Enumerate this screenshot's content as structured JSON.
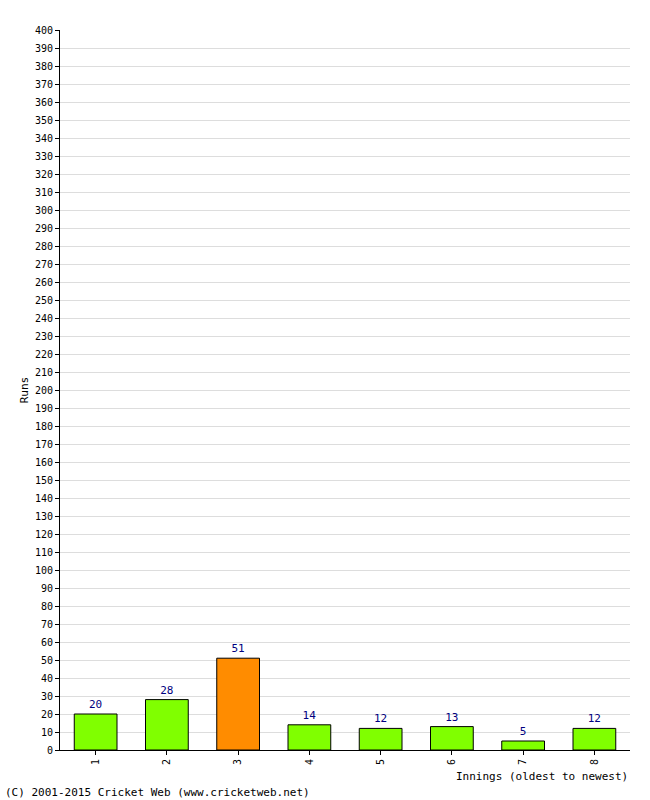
{
  "chart_data": {
    "type": "bar",
    "categories": [
      "1",
      "2",
      "3",
      "4",
      "5",
      "6",
      "7",
      "8"
    ],
    "values": [
      20,
      28,
      51,
      14,
      12,
      13,
      5,
      12
    ],
    "colors": [
      "#80ff00",
      "#80ff00",
      "#ff8c00",
      "#80ff00",
      "#80ff00",
      "#80ff00",
      "#80ff00",
      "#80ff00"
    ],
    "y_label": "Runs",
    "x_label": "Innings (oldest to newest)",
    "annotations": [
      "(C) 2001-2015 Cricket Web (www.cricketweb.net)"
    ],
    "ylim": [
      0,
      400
    ],
    "yticks": [
      0,
      10,
      20,
      30,
      40,
      50,
      60,
      70,
      80,
      90,
      100,
      110,
      120,
      130,
      140,
      150,
      160,
      170,
      180,
      190,
      200,
      210,
      220,
      230,
      240,
      250,
      260,
      270,
      280,
      290,
      300,
      310,
      320,
      330,
      340,
      350,
      360,
      370,
      380,
      390,
      400
    ],
    "grid": true,
    "data_labels": true
  }
}
